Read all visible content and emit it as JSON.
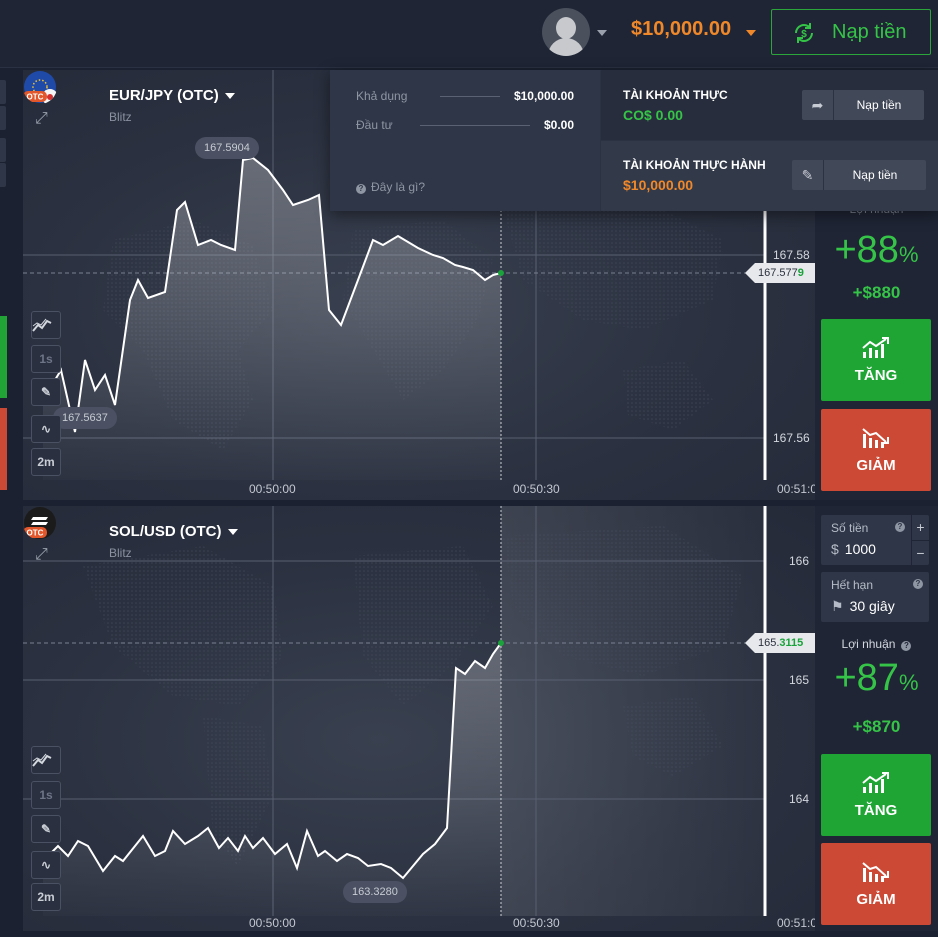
{
  "header": {
    "balance": "$10,000.00",
    "deposit_label": "Nạp tiền"
  },
  "account_menu": {
    "available_label": "Khả dụng",
    "available_value": "$10,000.00",
    "invested_label": "Đầu tư",
    "invested_value": "$0.00",
    "help_label": "Đây là gì?",
    "real": {
      "title": "TÀI KHOẢN THỰC",
      "amount": "CO$ 0.00",
      "button": "Nạp tiền"
    },
    "demo": {
      "title": "TÀI KHOẢN THỰC HÀNH",
      "amount": "$10,000.00",
      "button": "Nạp tiền"
    }
  },
  "charts": [
    {
      "asset": "EUR/JPY (OTC)",
      "mode": "Blitz",
      "badge": "OTC",
      "price_labels": [
        "167.58",
        "167.56"
      ],
      "current_price_prefix": "167.577",
      "current_price_suffix": "9",
      "high_label": "167.5904",
      "low_label": "167.5637",
      "time_labels": [
        "00:50:00",
        "00:50:30",
        "00:51:0"
      ],
      "tools": {
        "interval": "1s",
        "timeframe": "2m"
      }
    },
    {
      "asset": "SOL/USD (OTC)",
      "mode": "Blitz",
      "badge": "OTC",
      "price_labels": [
        "166",
        "165",
        "164"
      ],
      "current_price_prefix": "165.",
      "current_price_suffix": "3115",
      "low_label": "163.3280",
      "time_labels": [
        "00:50:00",
        "00:50:30",
        "00:51:0"
      ],
      "tools": {
        "interval": "1s",
        "timeframe": "2m"
      }
    }
  ],
  "trade_panels": [
    {
      "profit_label": "Lợi nhuận",
      "profit_pct": "+88",
      "pct_sign": "%",
      "profit_amount": "+$880",
      "up_label": "TĂNG",
      "down_label": "GIẢM"
    },
    {
      "amount_label": "Số tiền",
      "currency": "$",
      "amount_value": "1000",
      "expiry_label": "Hết hạn",
      "expiry_value": "30 giây",
      "profit_label": "Lợi nhuận",
      "profit_pct": "+87",
      "pct_sign": "%",
      "profit_amount": "+$870",
      "up_label": "TĂNG",
      "down_label": "GIẢM"
    }
  ],
  "colors": {
    "up": "#1ea534",
    "down": "#cc4a35",
    "accent_orange": "#f0882a",
    "profit_green": "#35c447"
  },
  "icons": [
    "user-avatar-icon",
    "deposit-cycle-icon",
    "close-icon",
    "expand-icon",
    "chart-type-icon",
    "pencil-icon",
    "indicator-icon",
    "share-icon",
    "chart-up-icon",
    "chart-down-icon",
    "help-icon",
    "flag-icon"
  ]
}
